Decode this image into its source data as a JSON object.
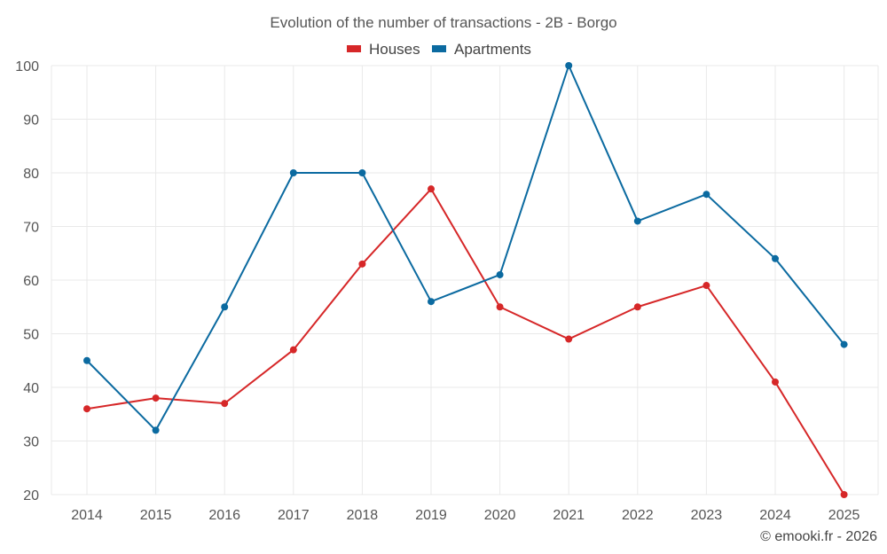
{
  "chart_data": {
    "type": "line",
    "title": "Evolution of the number of transactions - 2B - Borgo",
    "categories": [
      "2014",
      "2015",
      "2016",
      "2017",
      "2018",
      "2019",
      "2020",
      "2021",
      "2022",
      "2023",
      "2024",
      "2025"
    ],
    "series": [
      {
        "name": "Houses",
        "color": "#d62728",
        "values": [
          36,
          38,
          37,
          47,
          63,
          77,
          55,
          49,
          55,
          59,
          41,
          20
        ]
      },
      {
        "name": "Apartments",
        "color": "#0b6aa0",
        "values": [
          45,
          32,
          55,
          80,
          80,
          56,
          61,
          100,
          71,
          76,
          64,
          48
        ]
      }
    ],
    "ylim": [
      20,
      100
    ],
    "yticks": [
      "20",
      "30",
      "40",
      "50",
      "60",
      "70",
      "80",
      "90",
      "100"
    ],
    "xlabel": "",
    "ylabel": "",
    "grid": true,
    "legend": "top-center"
  },
  "credit": "© emooki.fr - 2026"
}
